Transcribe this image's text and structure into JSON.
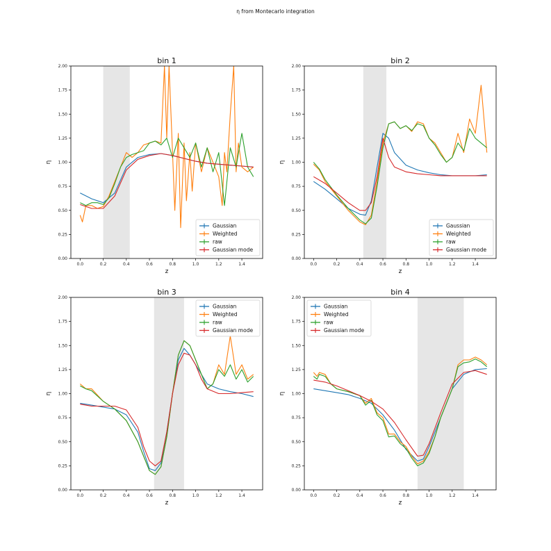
{
  "figure": {
    "suptitle": "η from Montecarlo integration"
  },
  "colors": {
    "Gaussian": "#1f77b4",
    "Weighted": "#ff7f0e",
    "raw": "#2ca02c",
    "Gaussian mode": "#d62728",
    "shade": "#e6e6e6"
  },
  "chart_data": [
    {
      "type": "line",
      "title": "bin 1",
      "xlabel": "z",
      "ylabel": "η",
      "xlim": [
        -0.08,
        1.58
      ],
      "ylim": [
        0,
        2
      ],
      "xticks": [
        "0.0",
        "0.2",
        "0.4",
        "0.6",
        "0.8",
        "1.0",
        "1.2",
        "1.4"
      ],
      "yticks": [
        "0.00",
        "0.25",
        "0.50",
        "0.75",
        "1.00",
        "1.25",
        "1.50",
        "1.75",
        "2.00"
      ],
      "shaded_band": [
        0.2,
        0.43
      ],
      "legend": {
        "loc": "lower right",
        "entries": [
          "Gaussian",
          "Weighted",
          "raw",
          "Gaussian mode"
        ]
      },
      "series": [
        {
          "name": "Gaussian",
          "x": [
            0,
            0.1,
            0.2,
            0.3,
            0.4,
            0.5,
            0.6,
            0.7,
            0.8,
            0.9,
            1.0,
            1.1,
            1.2,
            1.3,
            1.4,
            1.5
          ],
          "y": [
            0.68,
            0.62,
            0.58,
            0.68,
            0.95,
            1.05,
            1.08,
            1.09,
            1.07,
            1.04,
            1.01,
            0.99,
            0.98,
            0.97,
            0.96,
            0.95
          ]
        },
        {
          "name": "Weighted",
          "x": [
            0,
            0.02,
            0.05,
            0.1,
            0.15,
            0.2,
            0.25,
            0.3,
            0.35,
            0.4,
            0.45,
            0.5,
            0.55,
            0.6,
            0.65,
            0.7,
            0.73,
            0.75,
            0.77,
            0.8,
            0.82,
            0.85,
            0.87,
            0.9,
            0.92,
            0.95,
            0.97,
            1.0,
            1.05,
            1.1,
            1.15,
            1.2,
            1.23,
            1.25,
            1.27,
            1.3,
            1.33,
            1.35,
            1.37,
            1.4,
            1.45,
            1.5
          ],
          "y": [
            0.45,
            0.38,
            0.55,
            0.55,
            0.52,
            0.54,
            0.65,
            0.8,
            0.95,
            1.1,
            1.05,
            1.1,
            1.18,
            1.2,
            1.22,
            1.2,
            2.0,
            1.25,
            2.0,
            1.1,
            0.5,
            1.3,
            0.32,
            1.2,
            0.6,
            1.1,
            0.7,
            1.2,
            0.9,
            1.15,
            1.0,
            0.85,
            0.55,
            1.1,
            0.9,
            1.5,
            2.0,
            0.9,
            1.2,
            0.95,
            0.9,
            0.95
          ]
        },
        {
          "name": "raw",
          "x": [
            0,
            0.05,
            0.1,
            0.15,
            0.2,
            0.25,
            0.3,
            0.35,
            0.4,
            0.45,
            0.5,
            0.55,
            0.6,
            0.65,
            0.7,
            0.75,
            0.8,
            0.85,
            0.9,
            0.95,
            1.0,
            1.05,
            1.1,
            1.15,
            1.2,
            1.25,
            1.3,
            1.35,
            1.4,
            1.45,
            1.5
          ],
          "y": [
            0.58,
            0.55,
            0.58,
            0.58,
            0.56,
            0.63,
            0.78,
            0.95,
            1.05,
            1.08,
            1.1,
            1.12,
            1.2,
            1.22,
            1.18,
            1.25,
            1.05,
            1.25,
            1.15,
            1.05,
            1.2,
            0.95,
            1.15,
            0.9,
            1.1,
            0.55,
            1.15,
            0.95,
            1.3,
            0.95,
            0.85
          ]
        },
        {
          "name": "Gaussian mode",
          "x": [
            0,
            0.1,
            0.2,
            0.3,
            0.4,
            0.5,
            0.6,
            0.7,
            0.8,
            0.9,
            1.0,
            1.1,
            1.2,
            1.3,
            1.4,
            1.5
          ],
          "y": [
            0.56,
            0.52,
            0.52,
            0.65,
            0.92,
            1.03,
            1.07,
            1.09,
            1.07,
            1.04,
            1.01,
            0.99,
            0.98,
            0.97,
            0.96,
            0.95
          ]
        }
      ]
    },
    {
      "type": "line",
      "title": "bin 2",
      "xlabel": "z",
      "ylabel": "η",
      "xlim": [
        -0.08,
        1.58
      ],
      "ylim": [
        0,
        2
      ],
      "xticks": [
        "0.0",
        "0.2",
        "0.4",
        "0.6",
        "0.8",
        "1.0",
        "1.2",
        "1.4"
      ],
      "yticks": [
        "0.00",
        "0.25",
        "0.50",
        "0.75",
        "1.00",
        "1.25",
        "1.50",
        "1.75",
        "2.00"
      ],
      "shaded_band": [
        0.43,
        0.63
      ],
      "legend": {
        "loc": "lower right",
        "entries": [
          "Gaussian",
          "Weighted",
          "raw",
          "Gaussian mode"
        ]
      },
      "series": [
        {
          "name": "Gaussian",
          "x": [
            0,
            0.1,
            0.2,
            0.3,
            0.4,
            0.45,
            0.5,
            0.55,
            0.6,
            0.65,
            0.7,
            0.8,
            0.9,
            1.0,
            1.1,
            1.2,
            1.3,
            1.4,
            1.5
          ],
          "y": [
            0.8,
            0.72,
            0.62,
            0.52,
            0.46,
            0.45,
            0.6,
            0.95,
            1.3,
            1.25,
            1.1,
            0.97,
            0.92,
            0.89,
            0.87,
            0.86,
            0.86,
            0.86,
            0.87
          ]
        },
        {
          "name": "Weighted",
          "x": [
            0,
            0.05,
            0.1,
            0.2,
            0.3,
            0.4,
            0.45,
            0.5,
            0.55,
            0.6,
            0.65,
            0.7,
            0.75,
            0.8,
            0.85,
            0.9,
            0.95,
            1.0,
            1.05,
            1.1,
            1.15,
            1.2,
            1.25,
            1.3,
            1.35,
            1.4,
            1.45,
            1.5
          ],
          "y": [
            0.98,
            0.92,
            0.8,
            0.65,
            0.5,
            0.38,
            0.35,
            0.45,
            0.8,
            1.2,
            1.4,
            1.42,
            1.35,
            1.38,
            1.32,
            1.42,
            1.4,
            1.25,
            1.2,
            1.1,
            1.0,
            1.05,
            1.3,
            1.1,
            1.45,
            1.3,
            1.8,
            1.1
          ]
        },
        {
          "name": "raw",
          "x": [
            0,
            0.05,
            0.1,
            0.2,
            0.3,
            0.4,
            0.45,
            0.5,
            0.55,
            0.6,
            0.65,
            0.7,
            0.75,
            0.8,
            0.85,
            0.9,
            0.95,
            1.0,
            1.05,
            1.1,
            1.15,
            1.2,
            1.25,
            1.3,
            1.35,
            1.4,
            1.45,
            1.5
          ],
          "y": [
            1.0,
            0.93,
            0.82,
            0.66,
            0.52,
            0.4,
            0.36,
            0.42,
            0.75,
            1.15,
            1.4,
            1.42,
            1.35,
            1.38,
            1.33,
            1.4,
            1.38,
            1.25,
            1.18,
            1.08,
            1.0,
            1.05,
            1.2,
            1.12,
            1.35,
            1.25,
            1.2,
            1.15
          ]
        },
        {
          "name": "Gaussian mode",
          "x": [
            0,
            0.1,
            0.2,
            0.3,
            0.4,
            0.45,
            0.5,
            0.55,
            0.6,
            0.65,
            0.7,
            0.8,
            0.9,
            1.0,
            1.1,
            1.2,
            1.3,
            1.4,
            1.5
          ],
          "y": [
            0.85,
            0.78,
            0.68,
            0.58,
            0.5,
            0.5,
            0.58,
            0.85,
            1.25,
            1.05,
            0.95,
            0.9,
            0.88,
            0.87,
            0.86,
            0.86,
            0.86,
            0.86,
            0.86
          ]
        }
      ]
    },
    {
      "type": "line",
      "title": "bin 3",
      "xlabel": "z",
      "ylabel": "η",
      "xlim": [
        -0.08,
        1.58
      ],
      "ylim": [
        0,
        2
      ],
      "xticks": [
        "0.0",
        "0.2",
        "0.4",
        "0.6",
        "0.8",
        "1.0",
        "1.2",
        "1.4"
      ],
      "yticks": [
        "0.00",
        "0.25",
        "0.50",
        "0.75",
        "1.00",
        "1.25",
        "1.50",
        "1.75",
        "2.00"
      ],
      "shaded_band": [
        0.64,
        0.9
      ],
      "legend": {
        "loc": "upper right",
        "entries": [
          "Gaussian",
          "Weighted",
          "raw",
          "Gaussian mode"
        ]
      },
      "series": [
        {
          "name": "Gaussian",
          "x": [
            0,
            0.1,
            0.2,
            0.3,
            0.4,
            0.5,
            0.55,
            0.6,
            0.65,
            0.7,
            0.75,
            0.8,
            0.85,
            0.9,
            0.95,
            1.0,
            1.05,
            1.1,
            1.2,
            1.3,
            1.4,
            1.5
          ],
          "y": [
            0.9,
            0.88,
            0.86,
            0.84,
            0.78,
            0.6,
            0.4,
            0.22,
            0.2,
            0.28,
            0.6,
            1.0,
            1.35,
            1.47,
            1.4,
            1.3,
            1.2,
            1.1,
            1.05,
            1.02,
            1.0,
            0.97
          ]
        },
        {
          "name": "Weighted",
          "x": [
            0,
            0.05,
            0.1,
            0.2,
            0.3,
            0.4,
            0.5,
            0.55,
            0.6,
            0.65,
            0.7,
            0.75,
            0.8,
            0.85,
            0.9,
            0.95,
            1.0,
            1.05,
            1.1,
            1.15,
            1.2,
            1.25,
            1.3,
            1.35,
            1.4,
            1.45,
            1.5
          ],
          "y": [
            1.1,
            1.05,
            1.05,
            0.92,
            0.84,
            0.72,
            0.5,
            0.35,
            0.2,
            0.16,
            0.24,
            0.55,
            1.0,
            1.4,
            1.55,
            1.5,
            1.35,
            1.2,
            1.05,
            1.1,
            1.3,
            1.2,
            1.6,
            1.2,
            1.3,
            1.15,
            1.2
          ]
        },
        {
          "name": "raw",
          "x": [
            0,
            0.05,
            0.1,
            0.2,
            0.3,
            0.4,
            0.5,
            0.55,
            0.6,
            0.65,
            0.7,
            0.75,
            0.8,
            0.85,
            0.9,
            0.95,
            1.0,
            1.05,
            1.1,
            1.15,
            1.2,
            1.25,
            1.3,
            1.35,
            1.4,
            1.45,
            1.5
          ],
          "y": [
            1.08,
            1.05,
            1.03,
            0.92,
            0.84,
            0.72,
            0.5,
            0.35,
            0.2,
            0.16,
            0.24,
            0.55,
            1.0,
            1.4,
            1.55,
            1.5,
            1.35,
            1.2,
            1.05,
            1.1,
            1.25,
            1.18,
            1.3,
            1.15,
            1.25,
            1.12,
            1.18
          ]
        },
        {
          "name": "Gaussian mode",
          "x": [
            0,
            0.1,
            0.2,
            0.3,
            0.4,
            0.5,
            0.55,
            0.6,
            0.65,
            0.7,
            0.75,
            0.8,
            0.85,
            0.9,
            0.95,
            1.0,
            1.05,
            1.1,
            1.2,
            1.3,
            1.4,
            1.5
          ],
          "y": [
            0.89,
            0.87,
            0.87,
            0.87,
            0.83,
            0.65,
            0.45,
            0.3,
            0.25,
            0.3,
            0.6,
            1.0,
            1.3,
            1.42,
            1.4,
            1.3,
            1.15,
            1.05,
            1.0,
            1.0,
            1.01,
            1.02
          ]
        }
      ]
    },
    {
      "type": "line",
      "title": "bin 4",
      "xlabel": "z",
      "ylabel": "η",
      "xlim": [
        -0.08,
        1.58
      ],
      "ylim": [
        0,
        2
      ],
      "xticks": [
        "0.0",
        "0.2",
        "0.4",
        "0.6",
        "0.8",
        "1.0",
        "1.2",
        "1.4"
      ],
      "yticks": [
        "0.00",
        "0.25",
        "0.50",
        "0.75",
        "1.00",
        "1.25",
        "1.50",
        "1.75",
        "2.00"
      ],
      "shaded_band": [
        0.9,
        1.3
      ],
      "legend": {
        "loc": "upper left",
        "entries": [
          "Gaussian",
          "Weighted",
          "raw",
          "Gaussian mode"
        ]
      },
      "series": [
        {
          "name": "Gaussian",
          "x": [
            0,
            0.1,
            0.2,
            0.3,
            0.4,
            0.5,
            0.6,
            0.7,
            0.8,
            0.9,
            0.95,
            1.0,
            1.1,
            1.2,
            1.3,
            1.4,
            1.5
          ],
          "y": [
            1.05,
            1.03,
            1.01,
            0.99,
            0.95,
            0.9,
            0.78,
            0.62,
            0.42,
            0.3,
            0.32,
            0.45,
            0.75,
            1.05,
            1.2,
            1.25,
            1.26
          ]
        },
        {
          "name": "Weighted",
          "x": [
            0,
            0.03,
            0.05,
            0.1,
            0.15,
            0.2,
            0.3,
            0.4,
            0.45,
            0.5,
            0.55,
            0.6,
            0.65,
            0.7,
            0.75,
            0.8,
            0.85,
            0.9,
            0.95,
            1.0,
            1.05,
            1.1,
            1.2,
            1.25,
            1.3,
            1.35,
            1.4,
            1.45,
            1.5
          ],
          "y": [
            1.22,
            1.18,
            1.22,
            1.2,
            1.1,
            1.05,
            1.02,
            0.98,
            0.9,
            0.95,
            0.8,
            0.75,
            0.58,
            0.58,
            0.5,
            0.45,
            0.35,
            0.27,
            0.3,
            0.4,
            0.55,
            0.75,
            1.05,
            1.3,
            1.35,
            1.35,
            1.38,
            1.35,
            1.3
          ]
        },
        {
          "name": "raw",
          "x": [
            0,
            0.03,
            0.05,
            0.1,
            0.15,
            0.2,
            0.3,
            0.4,
            0.45,
            0.5,
            0.55,
            0.6,
            0.65,
            0.7,
            0.75,
            0.8,
            0.85,
            0.9,
            0.95,
            1.0,
            1.05,
            1.1,
            1.2,
            1.25,
            1.3,
            1.35,
            1.4,
            1.45,
            1.5
          ],
          "y": [
            1.18,
            1.15,
            1.2,
            1.18,
            1.1,
            1.05,
            1.02,
            0.98,
            0.88,
            0.93,
            0.78,
            0.72,
            0.55,
            0.56,
            0.48,
            0.43,
            0.33,
            0.25,
            0.28,
            0.38,
            0.55,
            0.75,
            1.05,
            1.28,
            1.32,
            1.33,
            1.36,
            1.33,
            1.28
          ]
        },
        {
          "name": "Gaussian mode",
          "x": [
            0,
            0.1,
            0.2,
            0.3,
            0.4,
            0.5,
            0.6,
            0.7,
            0.8,
            0.9,
            0.95,
            1.0,
            1.1,
            1.2,
            1.3,
            1.4,
            1.5
          ],
          "y": [
            1.14,
            1.12,
            1.08,
            1.03,
            0.98,
            0.92,
            0.84,
            0.7,
            0.52,
            0.35,
            0.36,
            0.48,
            0.8,
            1.1,
            1.22,
            1.24,
            1.2
          ]
        }
      ]
    }
  ]
}
